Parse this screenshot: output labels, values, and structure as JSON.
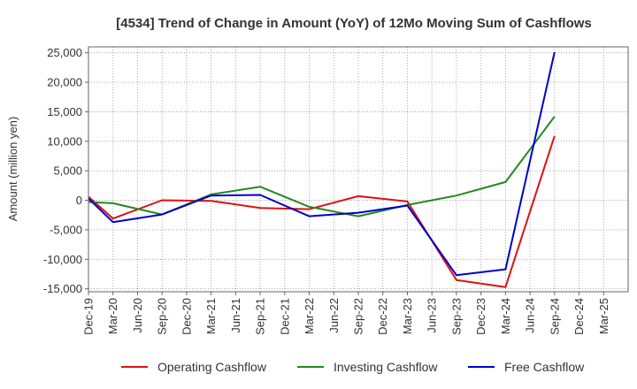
{
  "chart_data": {
    "type": "line",
    "title": "[4534]  Trend of Change in Amount (YoY) of 12Mo Moving Sum of Cashflows",
    "xlabel": "",
    "ylabel": "Amount (million yen)",
    "ylim": [
      -15500,
      26000
    ],
    "yticks": [
      25000,
      20000,
      15000,
      10000,
      5000,
      0,
      -5000,
      -10000,
      -15000
    ],
    "ytick_labels": [
      "25,000",
      "20,000",
      "15,000",
      "10,000",
      "5,000",
      "0",
      "-5,000",
      "-10,000",
      "-15,000"
    ],
    "categories": [
      "Dec-19",
      "Mar-20",
      "Jun-20",
      "Sep-20",
      "Dec-20",
      "Mar-21",
      "Jun-21",
      "Sep-21",
      "Dec-21",
      "Mar-22",
      "Jun-22",
      "Sep-22",
      "Dec-22",
      "Mar-23",
      "Jun-23",
      "Sep-23",
      "Dec-23",
      "Mar-24",
      "Jun-24",
      "Sep-24",
      "Dec-24",
      "Mar-25"
    ],
    "grid": true,
    "legend_position": "bottom",
    "series": [
      {
        "name": "Operating Cashflow",
        "color": "#dd1111",
        "values": [
          600,
          -3100,
          null,
          0,
          null,
          -100,
          null,
          -1300,
          null,
          -1500,
          null,
          700,
          null,
          -200,
          null,
          -13500,
          null,
          -14700,
          null,
          10900,
          null,
          null
        ]
      },
      {
        "name": "Investing Cashflow",
        "color": "#228822",
        "values": [
          -300,
          -500,
          null,
          -2400,
          null,
          1000,
          null,
          2300,
          null,
          -1100,
          null,
          -2700,
          null,
          -800,
          null,
          800,
          null,
          3100,
          null,
          14200,
          null,
          null
        ]
      },
      {
        "name": "Free Cashflow",
        "color": "#0000cc",
        "values": [
          300,
          -3700,
          null,
          -2400,
          null,
          800,
          null,
          900,
          null,
          -2700,
          null,
          -2100,
          null,
          -900,
          null,
          -12700,
          null,
          -11700,
          null,
          25100,
          null,
          null
        ]
      }
    ]
  }
}
